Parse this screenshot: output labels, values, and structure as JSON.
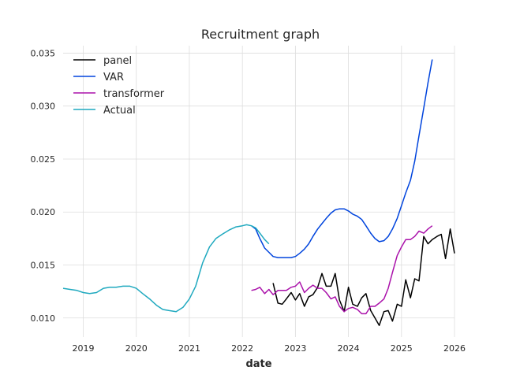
{
  "chart_data": {
    "type": "line",
    "title": "Recruitment graph",
    "xlabel": "date",
    "ylabel": "",
    "x_range": [
      2018.62,
      2026.0
    ],
    "ylim": [
      0.0082,
      0.0357
    ],
    "x_ticks": [
      {
        "value": 2019,
        "label": "2019"
      },
      {
        "value": 2020,
        "label": "2020"
      },
      {
        "value": 2021,
        "label": "2021"
      },
      {
        "value": 2022,
        "label": "2022"
      },
      {
        "value": 2023,
        "label": "2023"
      },
      {
        "value": 2024,
        "label": "2024"
      },
      {
        "value": 2025,
        "label": "2025"
      },
      {
        "value": 2026,
        "label": "2026"
      }
    ],
    "y_ticks": [
      {
        "value": 0.01,
        "label": "0.010"
      },
      {
        "value": 0.015,
        "label": "0.015"
      },
      {
        "value": 0.02,
        "label": "0.020"
      },
      {
        "value": 0.025,
        "label": "0.025"
      },
      {
        "value": 0.03,
        "label": "0.030"
      },
      {
        "value": 0.035,
        "label": "0.035"
      }
    ],
    "grid": true,
    "legend_position": "top-left",
    "series": [
      {
        "name": "panel",
        "color": "#000000",
        "points": [
          [
            2022.58,
            0.0133
          ],
          [
            2022.67,
            0.0114
          ],
          [
            2022.75,
            0.0113
          ],
          [
            2022.83,
            0.0118
          ],
          [
            2022.92,
            0.0124
          ],
          [
            2023.0,
            0.0117
          ],
          [
            2023.08,
            0.0123
          ],
          [
            2023.17,
            0.0111
          ],
          [
            2023.25,
            0.012
          ],
          [
            2023.33,
            0.0122
          ],
          [
            2023.42,
            0.0129
          ],
          [
            2023.5,
            0.0142
          ],
          [
            2023.58,
            0.013
          ],
          [
            2023.67,
            0.013
          ],
          [
            2023.75,
            0.0142
          ],
          [
            2023.83,
            0.0117
          ],
          [
            2023.92,
            0.0106
          ],
          [
            2024.0,
            0.0129
          ],
          [
            2024.08,
            0.0113
          ],
          [
            2024.17,
            0.0111
          ],
          [
            2024.25,
            0.0119
          ],
          [
            2024.33,
            0.0123
          ],
          [
            2024.42,
            0.0107
          ],
          [
            2024.5,
            0.01
          ],
          [
            2024.58,
            0.0093
          ],
          [
            2024.67,
            0.0106
          ],
          [
            2024.75,
            0.0107
          ],
          [
            2024.83,
            0.0097
          ],
          [
            2024.92,
            0.0113
          ],
          [
            2025.0,
            0.0111
          ],
          [
            2025.08,
            0.0136
          ],
          [
            2025.17,
            0.0119
          ],
          [
            2025.25,
            0.0137
          ],
          [
            2025.33,
            0.0135
          ],
          [
            2025.42,
            0.0177
          ],
          [
            2025.5,
            0.017
          ],
          [
            2025.58,
            0.0174
          ],
          [
            2025.67,
            0.0177
          ],
          [
            2025.75,
            0.0179
          ],
          [
            2025.83,
            0.0156
          ],
          [
            2025.92,
            0.0184
          ],
          [
            2026.0,
            0.0161
          ]
        ]
      },
      {
        "name": "VAR",
        "color": "#0044dd",
        "points": [
          [
            2022.17,
            0.0187
          ],
          [
            2022.25,
            0.0184
          ],
          [
            2022.33,
            0.0175
          ],
          [
            2022.42,
            0.0166
          ],
          [
            2022.5,
            0.0162
          ],
          [
            2022.58,
            0.0158
          ],
          [
            2022.67,
            0.0157
          ],
          [
            2022.75,
            0.0157
          ],
          [
            2022.83,
            0.0157
          ],
          [
            2022.92,
            0.0157
          ],
          [
            2023.0,
            0.0158
          ],
          [
            2023.08,
            0.0161
          ],
          [
            2023.17,
            0.0165
          ],
          [
            2023.25,
            0.017
          ],
          [
            2023.33,
            0.0177
          ],
          [
            2023.42,
            0.0184
          ],
          [
            2023.5,
            0.0189
          ],
          [
            2023.58,
            0.0194
          ],
          [
            2023.67,
            0.0199
          ],
          [
            2023.75,
            0.0202
          ],
          [
            2023.83,
            0.0203
          ],
          [
            2023.92,
            0.0203
          ],
          [
            2024.0,
            0.0201
          ],
          [
            2024.08,
            0.0198
          ],
          [
            2024.17,
            0.0196
          ],
          [
            2024.25,
            0.0193
          ],
          [
            2024.33,
            0.0187
          ],
          [
            2024.42,
            0.018
          ],
          [
            2024.5,
            0.0175
          ],
          [
            2024.58,
            0.0172
          ],
          [
            2024.67,
            0.0173
          ],
          [
            2024.75,
            0.0177
          ],
          [
            2024.83,
            0.0184
          ],
          [
            2024.92,
            0.0194
          ],
          [
            2025.0,
            0.0206
          ],
          [
            2025.08,
            0.0218
          ],
          [
            2025.17,
            0.023
          ],
          [
            2025.25,
            0.0248
          ],
          [
            2025.33,
            0.0272
          ],
          [
            2025.42,
            0.0298
          ],
          [
            2025.5,
            0.0322
          ],
          [
            2025.58,
            0.0344
          ]
        ]
      },
      {
        "name": "transformer",
        "color": "#aa11aa",
        "points": [
          [
            2022.17,
            0.0126
          ],
          [
            2022.25,
            0.0127
          ],
          [
            2022.33,
            0.0129
          ],
          [
            2022.42,
            0.0123
          ],
          [
            2022.5,
            0.0127
          ],
          [
            2022.58,
            0.0122
          ],
          [
            2022.67,
            0.0126
          ],
          [
            2022.75,
            0.0126
          ],
          [
            2022.83,
            0.0126
          ],
          [
            2022.92,
            0.0129
          ],
          [
            2023.0,
            0.013
          ],
          [
            2023.08,
            0.0134
          ],
          [
            2023.17,
            0.0124
          ],
          [
            2023.25,
            0.0128
          ],
          [
            2023.33,
            0.0131
          ],
          [
            2023.42,
            0.0128
          ],
          [
            2023.5,
            0.0128
          ],
          [
            2023.58,
            0.0124
          ],
          [
            2023.67,
            0.0118
          ],
          [
            2023.75,
            0.012
          ],
          [
            2023.83,
            0.0111
          ],
          [
            2023.92,
            0.0106
          ],
          [
            2024.0,
            0.0109
          ],
          [
            2024.08,
            0.011
          ],
          [
            2024.17,
            0.0108
          ],
          [
            2024.25,
            0.0104
          ],
          [
            2024.33,
            0.0104
          ],
          [
            2024.42,
            0.0111
          ],
          [
            2024.5,
            0.0111
          ],
          [
            2024.58,
            0.0114
          ],
          [
            2024.67,
            0.0118
          ],
          [
            2024.75,
            0.0128
          ],
          [
            2024.83,
            0.0143
          ],
          [
            2024.92,
            0.0159
          ],
          [
            2025.0,
            0.0167
          ],
          [
            2025.08,
            0.0174
          ],
          [
            2025.17,
            0.0174
          ],
          [
            2025.25,
            0.0177
          ],
          [
            2025.33,
            0.0182
          ],
          [
            2025.42,
            0.018
          ],
          [
            2025.5,
            0.0184
          ],
          [
            2025.58,
            0.0187
          ]
        ]
      },
      {
        "name": "Actual",
        "color": "#1fa9bf",
        "points": [
          [
            2018.62,
            0.0128
          ],
          [
            2018.75,
            0.0127
          ],
          [
            2018.88,
            0.0126
          ],
          [
            2019.0,
            0.0124
          ],
          [
            2019.12,
            0.0123
          ],
          [
            2019.25,
            0.0124
          ],
          [
            2019.38,
            0.0128
          ],
          [
            2019.5,
            0.0129
          ],
          [
            2019.62,
            0.0129
          ],
          [
            2019.75,
            0.013
          ],
          [
            2019.88,
            0.013
          ],
          [
            2020.0,
            0.0128
          ],
          [
            2020.12,
            0.0123
          ],
          [
            2020.25,
            0.0118
          ],
          [
            2020.38,
            0.0112
          ],
          [
            2020.5,
            0.0108
          ],
          [
            2020.62,
            0.0107
          ],
          [
            2020.75,
            0.0106
          ],
          [
            2020.88,
            0.011
          ],
          [
            2021.0,
            0.0118
          ],
          [
            2021.12,
            0.013
          ],
          [
            2021.25,
            0.0152
          ],
          [
            2021.38,
            0.0167
          ],
          [
            2021.5,
            0.0175
          ],
          [
            2021.62,
            0.0179
          ],
          [
            2021.75,
            0.0183
          ],
          [
            2021.88,
            0.0186
          ],
          [
            2022.0,
            0.0187
          ],
          [
            2022.08,
            0.0188
          ],
          [
            2022.17,
            0.0187
          ],
          [
            2022.25,
            0.0185
          ],
          [
            2022.33,
            0.018
          ],
          [
            2022.42,
            0.0174
          ],
          [
            2022.5,
            0.017
          ]
        ]
      }
    ]
  }
}
